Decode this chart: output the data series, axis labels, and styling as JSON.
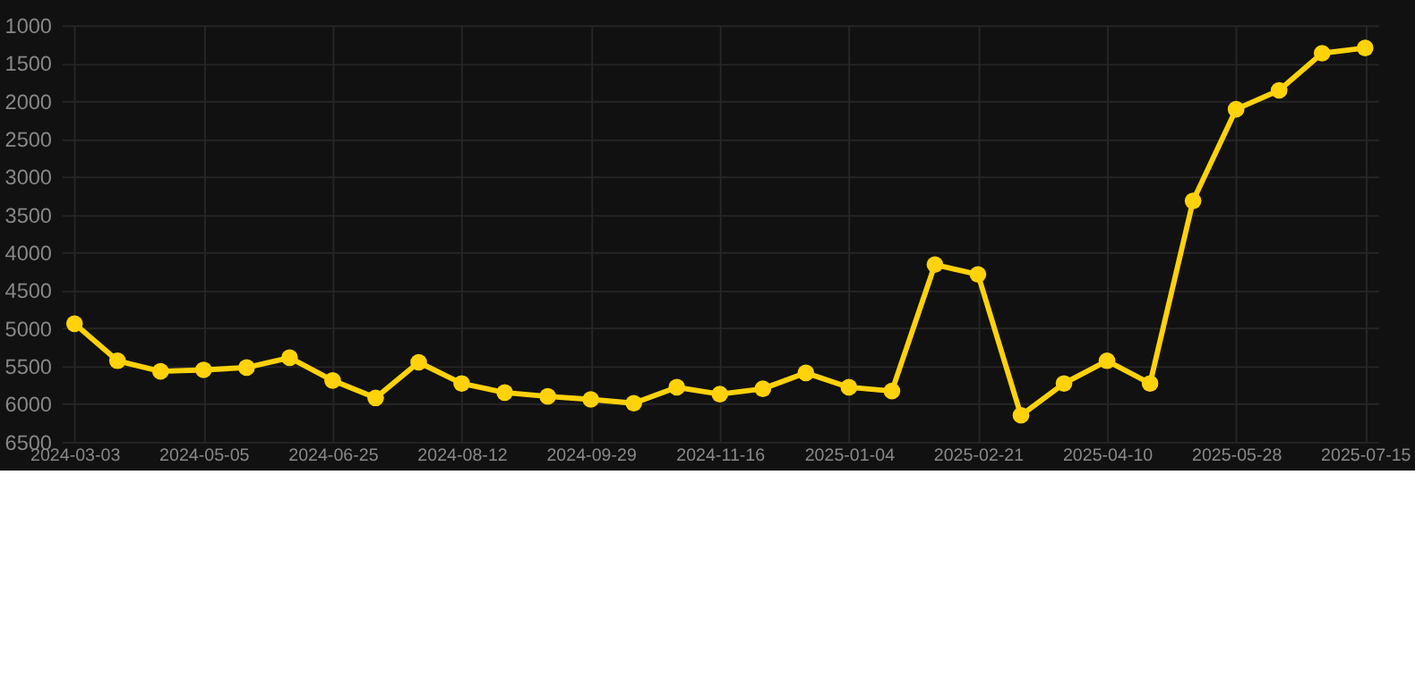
{
  "chart_data": {
    "type": "line",
    "categories": [
      "2024-03-03",
      null,
      null,
      "2024-05-05",
      null,
      null,
      "2024-06-25",
      null,
      null,
      "2024-08-12",
      null,
      null,
      "2024-09-29",
      null,
      null,
      "2024-11-16",
      null,
      null,
      "2025-01-04",
      null,
      null,
      "2025-02-21",
      null,
      null,
      "2025-04-10",
      null,
      null,
      "2025-05-28",
      null,
      null,
      "2025-07-15"
    ],
    "series": [
      {
        "color": "#ffd20a",
        "values": [
          4940,
          5430,
          5570,
          5550,
          5520,
          5390,
          5690,
          5920,
          5450,
          5730,
          5850,
          5900,
          5940,
          5990,
          5780,
          5870,
          5800,
          5590,
          5780,
          5830,
          4160,
          4290,
          6150,
          5730,
          5430,
          5730,
          3320,
          2110,
          1860,
          1370,
          1300
        ]
      }
    ],
    "ylim": [
      6500,
      1000
    ],
    "yticks": [
      1000,
      1500,
      2000,
      2500,
      3000,
      3500,
      4000,
      4500,
      5000,
      5500,
      6000,
      6500
    ],
    "grid": true,
    "marker": "circle",
    "line_style": "solid",
    "legend": false
  }
}
